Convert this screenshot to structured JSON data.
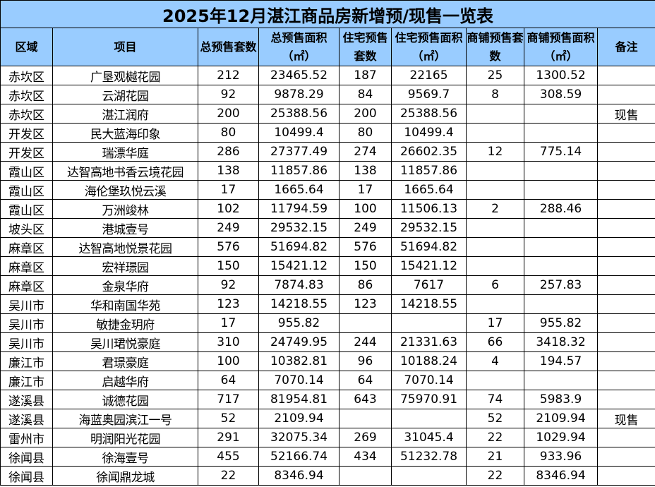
{
  "title": "2025年12月湛江商品房新增预/现售一览表",
  "headers": [
    "区域",
    "项目",
    "总预售套数",
    "总预售面积（㎡）",
    "住宅预售套数",
    "住宅预售面积（㎡）",
    "商铺预售套数",
    "商铺预售面积（㎡）",
    "备注"
  ],
  "rows": [
    [
      "赤坎区",
      "广垦观樾花园",
      "212",
      "23465.52",
      "187",
      "22165",
      "25",
      "1300.52",
      ""
    ],
    [
      "赤坎区",
      "云湖花园",
      "92",
      "9878.29",
      "84",
      "9569.7",
      "8",
      "308.59",
      ""
    ],
    [
      "赤坎区",
      "湛江润府",
      "200",
      "25388.56",
      "200",
      "25388.56",
      "",
      "",
      "现售"
    ],
    [
      "开发区",
      "民大蓝海印象",
      "80",
      "10499.4",
      "80",
      "10499.4",
      "",
      "",
      ""
    ],
    [
      "开发区",
      "瑞漂华庭",
      "286",
      "27377.49",
      "274",
      "26602.35",
      "12",
      "775.14",
      ""
    ],
    [
      "霞山区",
      "达智高地书香云境花园",
      "138",
      "11857.86",
      "138",
      "11857.86",
      "",
      "",
      ""
    ],
    [
      "霞山区",
      "海伦堡玖悦云溪",
      "17",
      "1665.64",
      "17",
      "1665.64",
      "",
      "",
      ""
    ],
    [
      "霞山区",
      "万洲竣林",
      "102",
      "11794.59",
      "100",
      "11506.13",
      "2",
      "288.46",
      ""
    ],
    [
      "坡头区",
      "港城壹号",
      "249",
      "29532.15",
      "249",
      "29532.15",
      "",
      "",
      ""
    ],
    [
      "麻章区",
      "达智高地悦景花园",
      "576",
      "51694.82",
      "576",
      "51694.82",
      "",
      "",
      ""
    ],
    [
      "麻章区",
      "宏祥璟园",
      "150",
      "15421.12",
      "150",
      "15421.12",
      "",
      "",
      ""
    ],
    [
      "麻章区",
      "金泉华府",
      "92",
      "7874.83",
      "86",
      "7617",
      "6",
      "257.83",
      ""
    ],
    [
      "吴川市",
      "华和南国华苑",
      "123",
      "14218.55",
      "123",
      "14218.55",
      "",
      "",
      ""
    ],
    [
      "吴川市",
      "敏捷金玥府",
      "17",
      "955.82",
      "",
      "",
      "17",
      "955.82",
      ""
    ],
    [
      "吴川市",
      "吴川珺悦豪庭",
      "310",
      "24749.95",
      "244",
      "21331.63",
      "66",
      "3418.32",
      ""
    ],
    [
      "廉江市",
      "君璟豪庭",
      "100",
      "10382.81",
      "96",
      "10188.24",
      "4",
      "194.57",
      ""
    ],
    [
      "廉江市",
      "启越华府",
      "64",
      "7070.14",
      "64",
      "7070.14",
      "",
      "",
      ""
    ],
    [
      "遂溪县",
      "诚德花园",
      "717",
      "81954.81",
      "643",
      "75970.91",
      "74",
      "5983.9",
      ""
    ],
    [
      "遂溪县",
      "海蓝奥园滨江一号",
      "52",
      "2109.94",
      "",
      "",
      "52",
      "2109.94",
      "现售"
    ],
    [
      "雷州市",
      "明润阳光花园",
      "291",
      "32075.34",
      "269",
      "31045.4",
      "22",
      "1029.94",
      ""
    ],
    [
      "徐闻县",
      "徐海壹号",
      "455",
      "52166.74",
      "434",
      "51232.78",
      "21",
      "933.96",
      ""
    ],
    [
      "徐闻县",
      "徐闻鼎龙城",
      "22",
      "8346.94",
      "",
      "",
      "22",
      "8346.94",
      ""
    ]
  ],
  "colors": {
    "header_bg": "#99ccff",
    "border": "#000000"
  }
}
